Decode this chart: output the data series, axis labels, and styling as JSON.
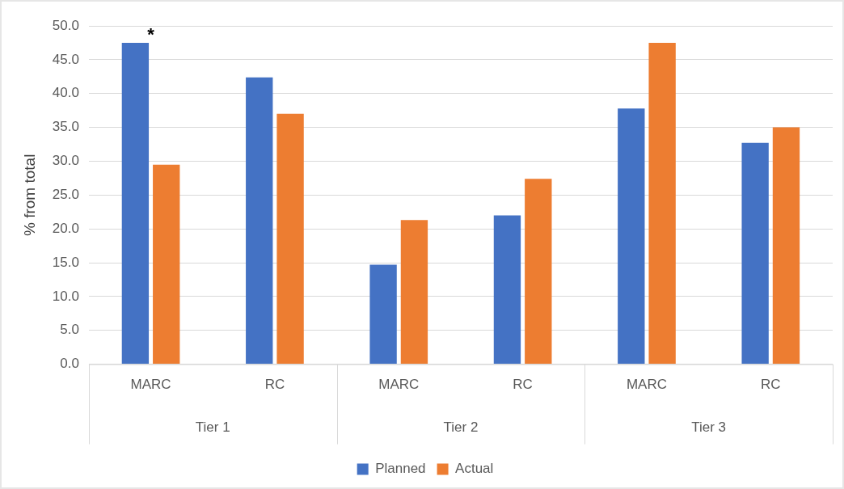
{
  "chart_data": {
    "type": "bar",
    "ylabel": "% from total",
    "categories": [
      "MARC",
      "RC",
      "MARC",
      "RC",
      "MARC",
      "RC"
    ],
    "series": [
      {
        "name": "Planned",
        "color": "#4472c4",
        "values": [
          47.5,
          42.4,
          14.7,
          22.0,
          37.8,
          32.7
        ]
      },
      {
        "name": "Actual",
        "color": "#ed7d31",
        "values": [
          29.5,
          37.0,
          21.3,
          27.4,
          47.5,
          35.0
        ]
      }
    ],
    "ylim": [
      0,
      50
    ],
    "yticks": [
      {
        "value": 0,
        "label": "0.0"
      },
      {
        "value": 5,
        "label": "5.0"
      },
      {
        "value": 10,
        "label": "10.0"
      },
      {
        "value": 15,
        "label": "15.0"
      },
      {
        "value": 20,
        "label": "20.0"
      },
      {
        "value": 25,
        "label": "25.0"
      },
      {
        "value": 30,
        "label": "30.0"
      },
      {
        "value": 35,
        "label": "35.0"
      },
      {
        "value": 40,
        "label": "40.0"
      },
      {
        "value": 45,
        "label": "45.0"
      },
      {
        "value": 50,
        "label": "50.0"
      }
    ],
    "grid": "y",
    "legend": "bottom",
    "annotations": [
      "*",
      "Tier 1",
      "Tier 2",
      "Tier 3"
    ]
  }
}
